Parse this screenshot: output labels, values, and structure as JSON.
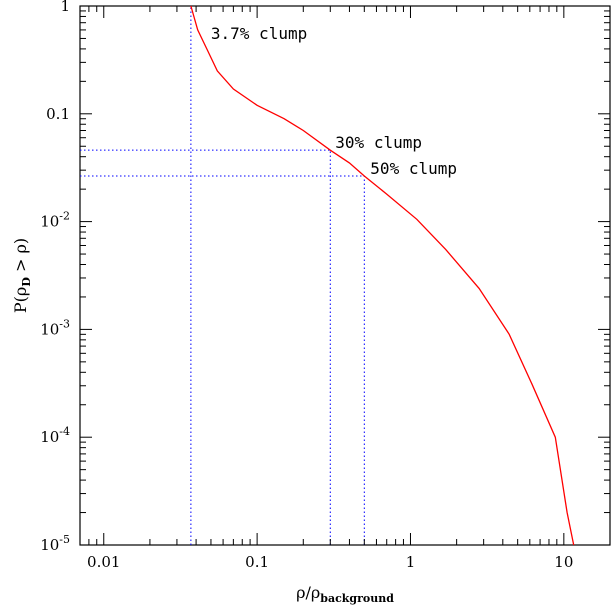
{
  "chart_data": {
    "type": "line",
    "x_scale": "log",
    "y_scale": "log",
    "xlim": [
      0.007,
      20
    ],
    "ylim": [
      1e-05,
      1
    ],
    "xlabel": {
      "main": "ρ/ρ",
      "sub": "background"
    },
    "ylabel": {
      "pre": "P(ρ",
      "sub": "D",
      "post": " > ρ)"
    },
    "x_ticks": [
      {
        "value": 0.01,
        "label": "0.01"
      },
      {
        "value": 0.1,
        "label": "0.1"
      },
      {
        "value": 1,
        "label": "1"
      },
      {
        "value": 10,
        "label": "10"
      }
    ],
    "y_ticks": [
      {
        "value": 1,
        "label": "1",
        "exp": ""
      },
      {
        "value": 0.1,
        "label": "0.1",
        "exp": ""
      },
      {
        "value": 0.01,
        "label": "10",
        "exp": "-2"
      },
      {
        "value": 0.001,
        "label": "10",
        "exp": "-3"
      },
      {
        "value": 0.0001,
        "label": "10",
        "exp": "-4"
      },
      {
        "value": 1e-05,
        "label": "10",
        "exp": "-5"
      }
    ],
    "series": [
      {
        "color": "#ff0000",
        "points": [
          [
            0.037,
            1.0
          ],
          [
            0.041,
            0.6
          ],
          [
            0.047,
            0.4
          ],
          [
            0.055,
            0.25
          ],
          [
            0.07,
            0.17
          ],
          [
            0.1,
            0.12
          ],
          [
            0.15,
            0.09
          ],
          [
            0.2,
            0.07
          ],
          [
            0.3,
            0.046
          ],
          [
            0.4,
            0.035
          ],
          [
            0.5,
            0.0265
          ],
          [
            0.7,
            0.018
          ],
          [
            1.1,
            0.0105
          ],
          [
            1.7,
            0.0055
          ],
          [
            2.8,
            0.0024
          ],
          [
            4.4,
            0.0009
          ],
          [
            6.2,
            0.00031
          ],
          [
            8.8,
            0.0001
          ],
          [
            10.5,
            2e-05
          ],
          [
            11.6,
            1e-05
          ]
        ]
      }
    ],
    "reference_lines": [
      {
        "color": "#0000ff",
        "x": 0.037,
        "y": 1.0,
        "label": "3.7% clump"
      },
      {
        "color": "#0000ff",
        "x": 0.3,
        "y": 0.046,
        "label": "30% clump"
      },
      {
        "color": "#0000ff",
        "x": 0.5,
        "y": 0.0265,
        "label": "50% clump"
      }
    ]
  }
}
